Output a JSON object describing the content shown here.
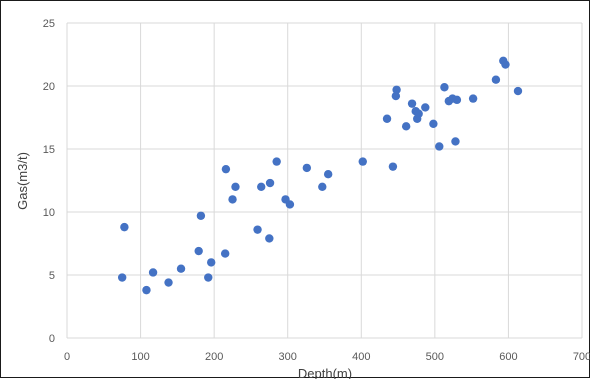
{
  "chart_data": {
    "type": "scatter",
    "title": "",
    "xlabel": "Depth(m)",
    "ylabel": "Gas(m3/t)",
    "xlim": [
      0,
      700
    ],
    "ylim": [
      0,
      25
    ],
    "xticks": [
      0,
      100,
      200,
      300,
      400,
      500,
      600,
      700
    ],
    "yticks": [
      0,
      5,
      10,
      15,
      20,
      25
    ],
    "grid": true,
    "legend": "none",
    "marker_color": "#4472C4",
    "grid_color": "#D9D9D9",
    "points": [
      {
        "x": 75,
        "y": 4.8
      },
      {
        "x": 78,
        "y": 8.8
      },
      {
        "x": 108,
        "y": 3.8
      },
      {
        "x": 117,
        "y": 5.2
      },
      {
        "x": 138,
        "y": 4.4
      },
      {
        "x": 155,
        "y": 5.5
      },
      {
        "x": 179,
        "y": 6.9
      },
      {
        "x": 182,
        "y": 9.7
      },
      {
        "x": 192,
        "y": 4.8
      },
      {
        "x": 196,
        "y": 6.0
      },
      {
        "x": 215,
        "y": 6.7
      },
      {
        "x": 216,
        "y": 13.4
      },
      {
        "x": 225,
        "y": 11.0
      },
      {
        "x": 229,
        "y": 12.0
      },
      {
        "x": 259,
        "y": 8.6
      },
      {
        "x": 264,
        "y": 12.0
      },
      {
        "x": 275,
        "y": 7.9
      },
      {
        "x": 276,
        "y": 12.3
      },
      {
        "x": 285,
        "y": 14.0
      },
      {
        "x": 297,
        "y": 11.0
      },
      {
        "x": 303,
        "y": 10.6
      },
      {
        "x": 326,
        "y": 13.5
      },
      {
        "x": 347,
        "y": 12.0
      },
      {
        "x": 355,
        "y": 13.0
      },
      {
        "x": 402,
        "y": 14.0
      },
      {
        "x": 435,
        "y": 17.4
      },
      {
        "x": 443,
        "y": 13.6
      },
      {
        "x": 447,
        "y": 19.2
      },
      {
        "x": 448,
        "y": 19.7
      },
      {
        "x": 461,
        "y": 16.8
      },
      {
        "x": 469,
        "y": 18.6
      },
      {
        "x": 474,
        "y": 18.0
      },
      {
        "x": 476,
        "y": 17.4
      },
      {
        "x": 478,
        "y": 17.8
      },
      {
        "x": 487,
        "y": 18.3
      },
      {
        "x": 498,
        "y": 17.0
      },
      {
        "x": 506,
        "y": 15.2
      },
      {
        "x": 513,
        "y": 19.9
      },
      {
        "x": 519,
        "y": 18.8
      },
      {
        "x": 524,
        "y": 19.0
      },
      {
        "x": 528,
        "y": 15.6
      },
      {
        "x": 530,
        "y": 18.9
      },
      {
        "x": 552,
        "y": 19.0
      },
      {
        "x": 583,
        "y": 20.5
      },
      {
        "x": 593,
        "y": 22.0
      },
      {
        "x": 596,
        "y": 21.7
      },
      {
        "x": 613,
        "y": 19.6
      }
    ]
  }
}
